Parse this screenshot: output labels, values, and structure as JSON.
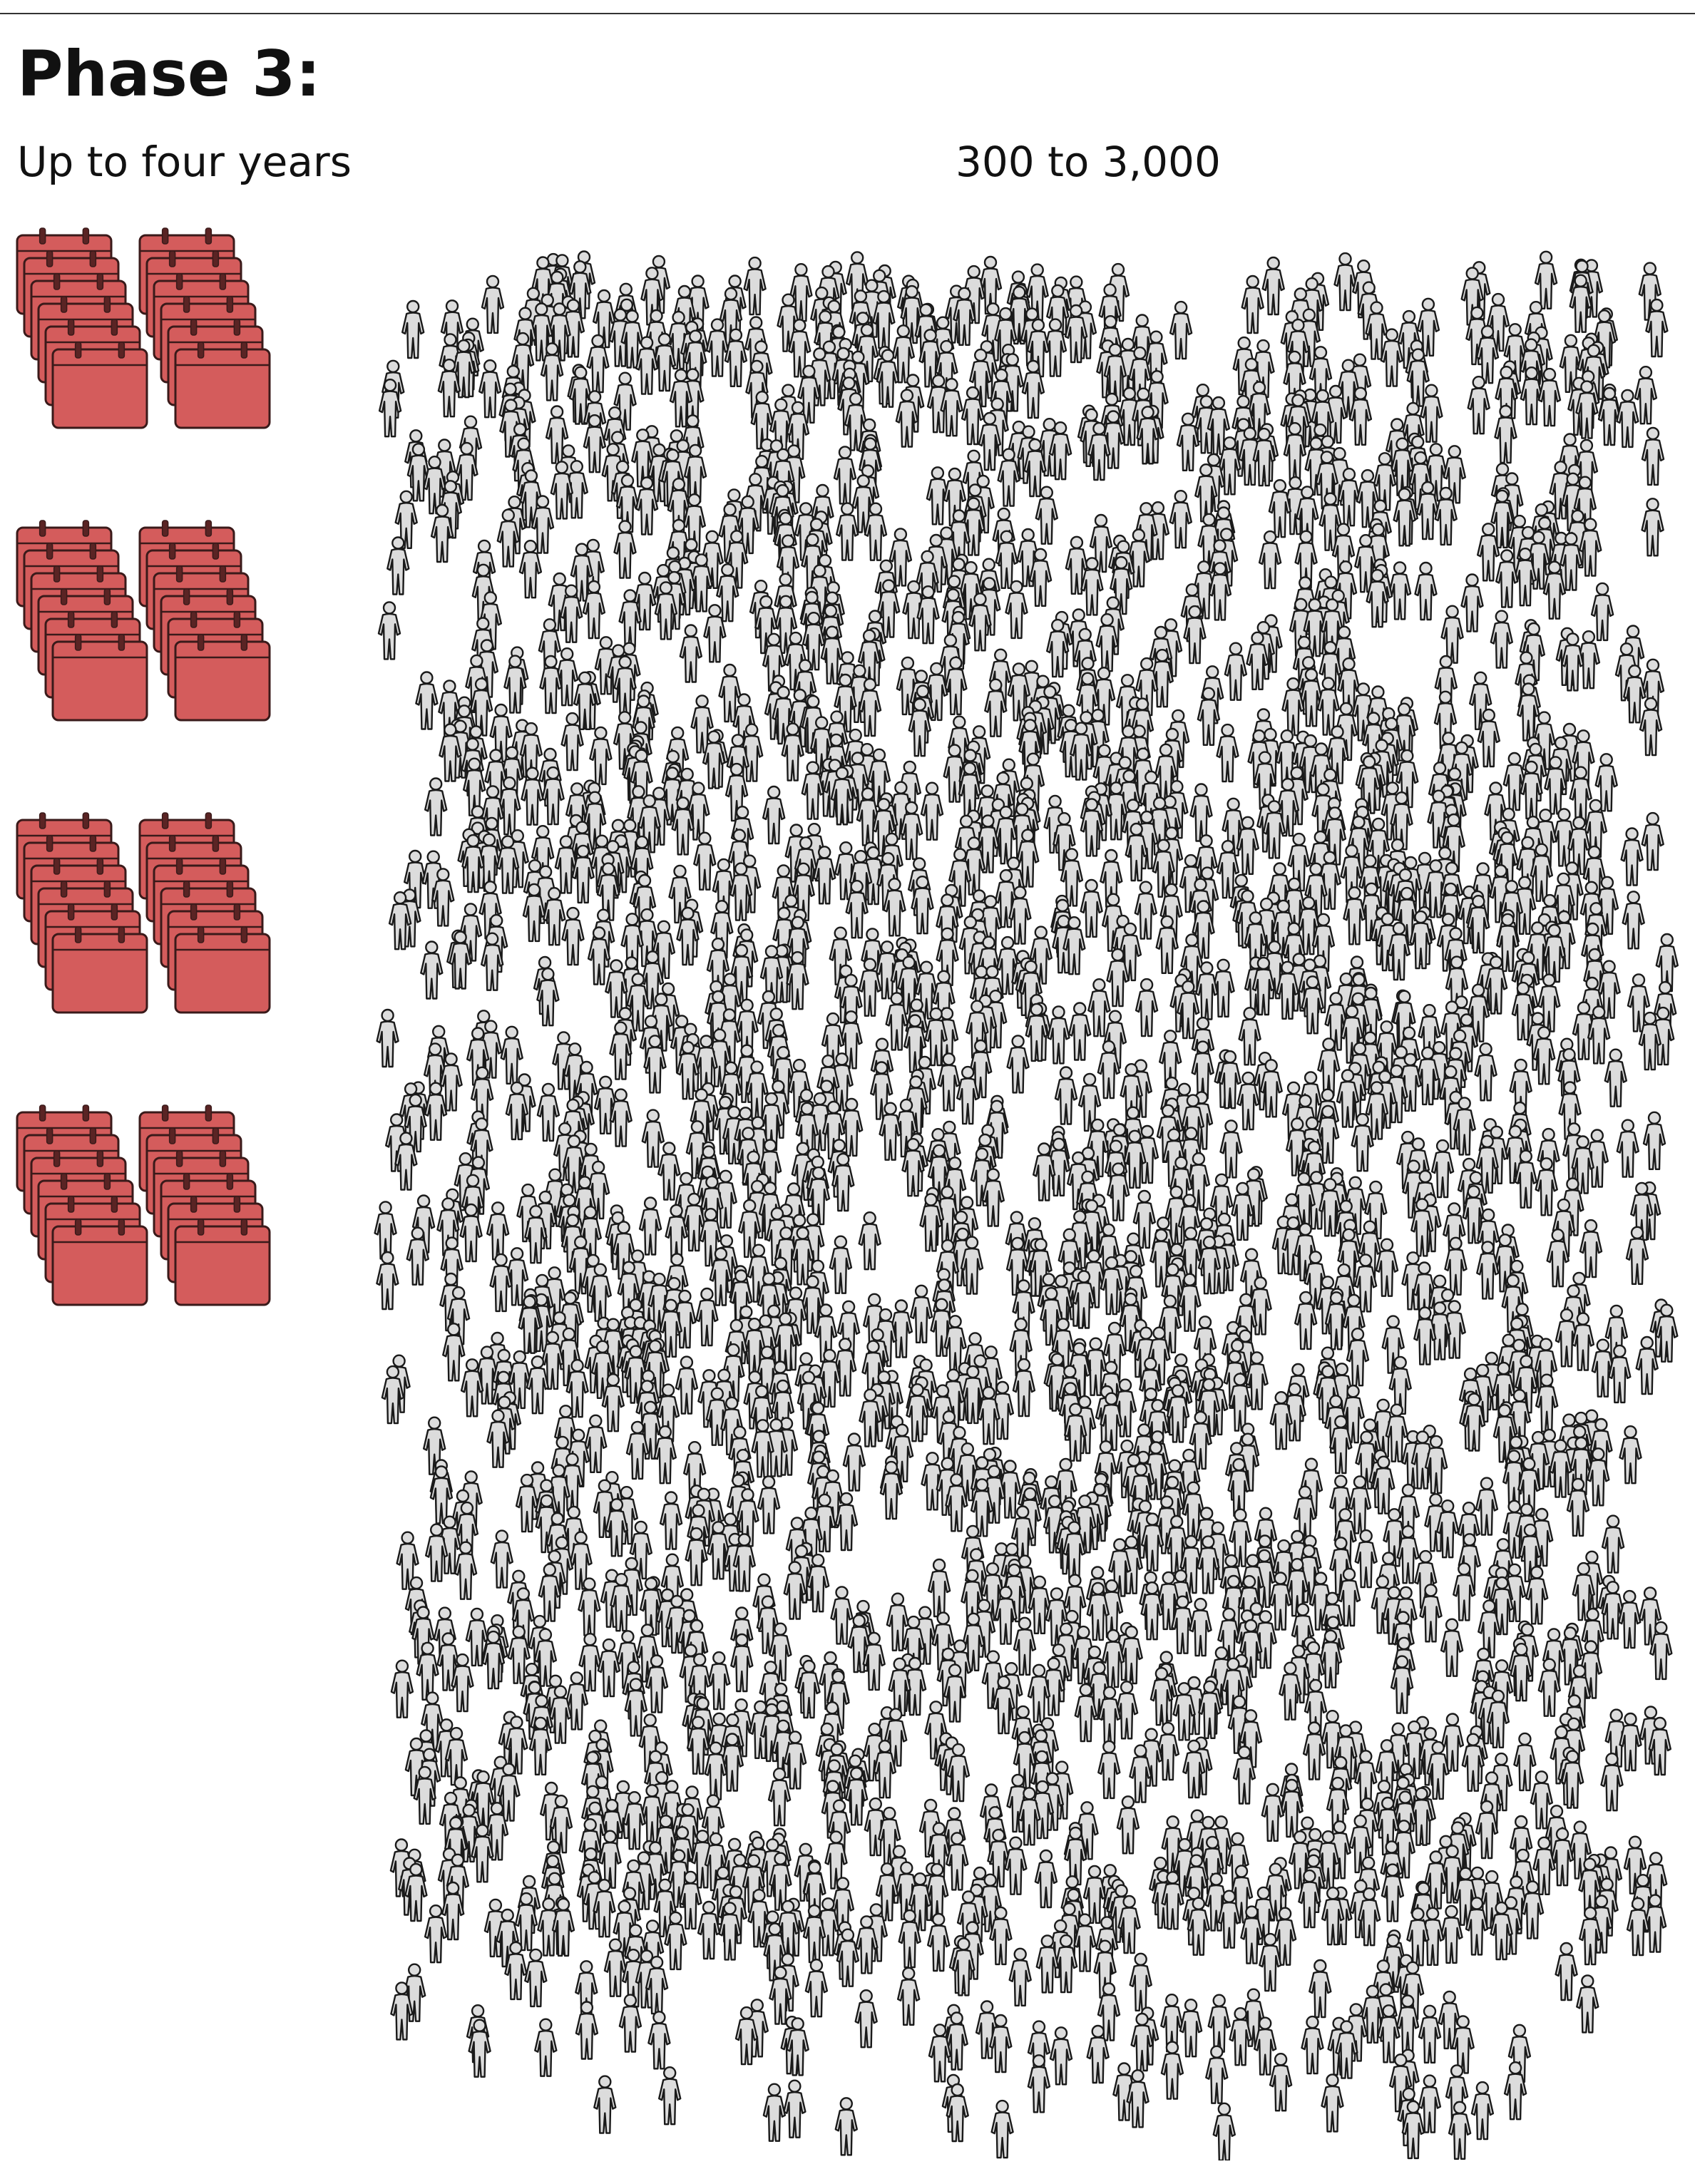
{
  "header": {
    "title": "Phase 3:",
    "duration": "Up to four years",
    "participants": "300 to 3,000"
  },
  "calendars": {
    "color": "#d45c5c",
    "stroke": "#3a1a1a",
    "groups": 4,
    "stacks_per_group": 2,
    "sheets_per_stack": 6
  },
  "people": {
    "icon": "person-icon",
    "fill": "#dcdcdc",
    "stroke": "#1a1a1a",
    "count": 2400
  }
}
